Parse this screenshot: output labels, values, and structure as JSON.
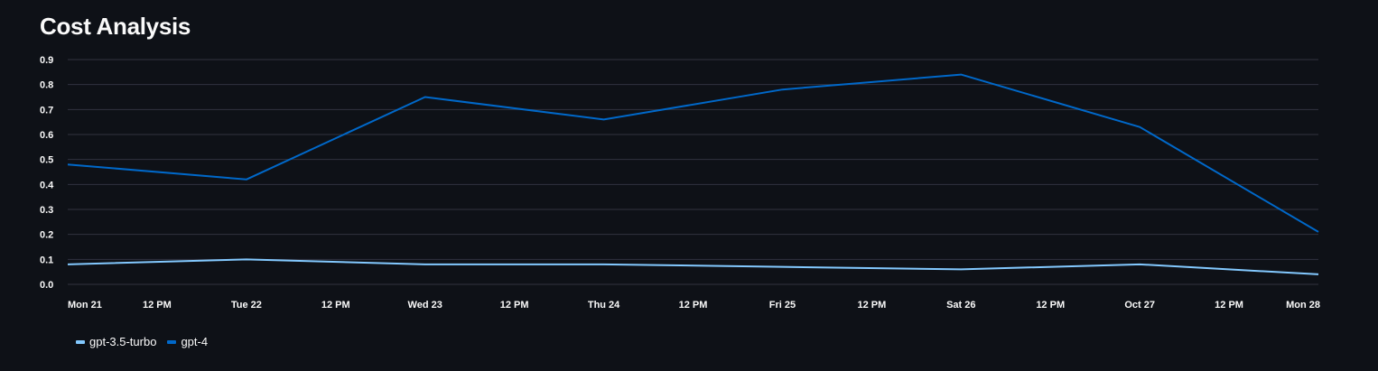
{
  "page": {
    "title": "Cost Analysis"
  },
  "chart_data": {
    "type": "line",
    "title": "Cost Analysis",
    "xlabel": "",
    "ylabel": "",
    "ylim": [
      0,
      0.9
    ],
    "y_ticks": [
      "0.0",
      "0.1",
      "0.2",
      "0.3",
      "0.4",
      "0.5",
      "0.6",
      "0.7",
      "0.8",
      "0.9"
    ],
    "x_ticks": [
      "Mon 21",
      "12 PM",
      "Tue 22",
      "12 PM",
      "Wed 23",
      "12 PM",
      "Thu 24",
      "12 PM",
      "Fri 25",
      "12 PM",
      "Sat 26",
      "12 PM",
      "Oct 27",
      "12 PM",
      "Mon 28"
    ],
    "x": [
      "2023-08-21",
      "2023-08-22",
      "2023-08-23",
      "2023-08-24",
      "2023-08-25",
      "2023-08-26",
      "2023-08-27",
      "2023-08-28"
    ],
    "grid": true,
    "legend_position": "bottom-left",
    "series": [
      {
        "name": "gpt-3.5-turbo",
        "color": "#83c9ff",
        "values": [
          0.08,
          0.1,
          0.08,
          0.08,
          0.07,
          0.06,
          0.08,
          0.04
        ]
      },
      {
        "name": "gpt-4",
        "color": "#0068c9",
        "values": [
          0.48,
          0.42,
          0.75,
          0.66,
          0.78,
          0.84,
          0.63,
          0.21
        ]
      }
    ]
  }
}
